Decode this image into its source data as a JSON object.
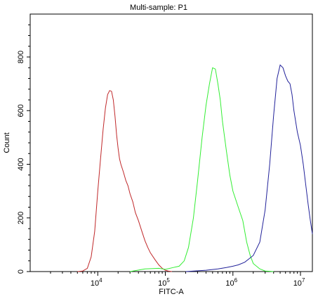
{
  "chart_data": {
    "type": "line",
    "title": "Multi-sample: P1",
    "xlabel": "FITC-A",
    "ylabel": "Count",
    "x_scale": "log",
    "xlim": [
      1000,
      15000000
    ],
    "ylim": [
      0,
      960
    ],
    "grid": false,
    "legend": "none",
    "x_ticks": [
      {
        "value": 10000,
        "base": "10",
        "exp": "4"
      },
      {
        "value": 100000,
        "base": "10",
        "exp": "5"
      },
      {
        "value": 1000000,
        "base": "10",
        "exp": "6"
      },
      {
        "value": 10000000,
        "base": "10",
        "exp": "7"
      }
    ],
    "y_ticks": [
      {
        "value": 0,
        "label": "0"
      },
      {
        "value": 200,
        "label": "200"
      },
      {
        "value": 400,
        "label": "400"
      },
      {
        "value": 600,
        "label": "600"
      },
      {
        "value": 800,
        "label": "800"
      }
    ],
    "series": [
      {
        "color": "#c0282a",
        "x": [
          5000,
          6000,
          7000,
          8000,
          9000,
          10000,
          11000,
          12000,
          13000,
          14000,
          15000,
          16000,
          17000,
          18000,
          19000,
          20000,
          21000,
          22000,
          24000,
          26000,
          28000,
          30000,
          33000,
          36000,
          40000,
          45000,
          50000,
          55000,
          60000,
          70000,
          80000,
          90000,
          100000,
          110000,
          125000
        ],
        "y": [
          0,
          2,
          12,
          55,
          150,
          300,
          420,
          530,
          610,
          660,
          675,
          672,
          640,
          580,
          510,
          460,
          420,
          400,
          370,
          340,
          320,
          290,
          260,
          220,
          190,
          150,
          115,
          90,
          70,
          45,
          25,
          12,
          5,
          2,
          0
        ]
      },
      {
        "color": "#33ee33",
        "x": [
          30000,
          50000,
          80000,
          100000,
          130000,
          160000,
          190000,
          220000,
          260000,
          300000,
          350000,
          400000,
          450000,
          500000,
          550000,
          600000,
          650000,
          700000,
          800000,
          900000,
          1000000,
          1200000,
          1400000,
          1600000,
          1800000,
          2000000,
          2500000,
          3000000,
          4000000
        ],
        "y": [
          0,
          10,
          12,
          8,
          15,
          20,
          40,
          90,
          200,
          340,
          500,
          620,
          700,
          760,
          755,
          700,
          640,
          560,
          450,
          360,
          300,
          240,
          190,
          110,
          60,
          30,
          10,
          2,
          0
        ]
      },
      {
        "color": "#22229a",
        "x": [
          200000,
          400000,
          600000,
          800000,
          1000000,
          1200000,
          1500000,
          2000000,
          2500000,
          3000000,
          3500000,
          4000000,
          4500000,
          5000000,
          5500000,
          6000000,
          6500000,
          7000000,
          7500000,
          8000000,
          9000000,
          10000000,
          11000000,
          12000000,
          13000000,
          14000000,
          15000000
        ],
        "y": [
          0,
          5,
          10,
          15,
          20,
          25,
          35,
          60,
          110,
          230,
          400,
          580,
          720,
          770,
          760,
          730,
          710,
          700,
          660,
          600,
          520,
          470,
          400,
          320,
          250,
          190,
          140
        ]
      }
    ]
  }
}
